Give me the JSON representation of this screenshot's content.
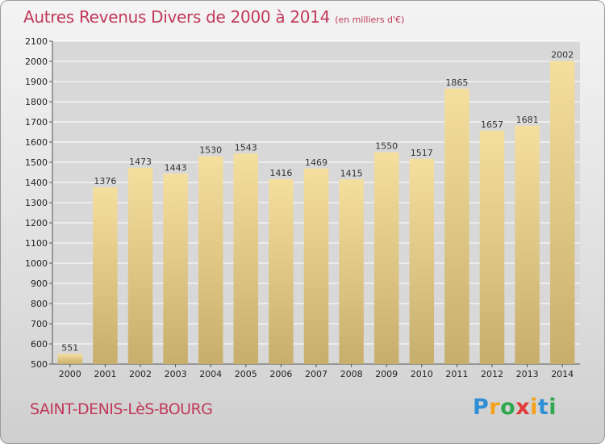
{
  "chart_data": {
    "type": "bar",
    "title": "Autres Revenus Divers de 2000 à 2014",
    "unit": "(en milliers d'€)",
    "categories": [
      "2000",
      "2001",
      "2002",
      "2003",
      "2004",
      "2005",
      "2006",
      "2007",
      "2008",
      "2009",
      "2010",
      "2011",
      "2012",
      "2013",
      "2014"
    ],
    "values": [
      551,
      1376,
      1473,
      1443,
      1530,
      1543,
      1416,
      1469,
      1415,
      1550,
      1517,
      1865,
      1657,
      1681,
      2002
    ],
    "ylim": [
      500,
      2100
    ],
    "yticks": [
      500,
      600,
      700,
      800,
      900,
      1000,
      1100,
      1200,
      1300,
      1400,
      1500,
      1600,
      1700,
      1800,
      1900,
      2000,
      2100
    ],
    "grid": true,
    "bar_color_light": "#f5df9e",
    "bar_color_dark": "#c8ae6c"
  },
  "footer": {
    "city": "SAINT-DENIS-LèS-BOURG",
    "logo_letters": [
      "P",
      "r",
      "o",
      "x",
      "i",
      "t",
      "i"
    ]
  },
  "colors": {
    "title": "#c0395a",
    "grid": "#ffffff"
  }
}
